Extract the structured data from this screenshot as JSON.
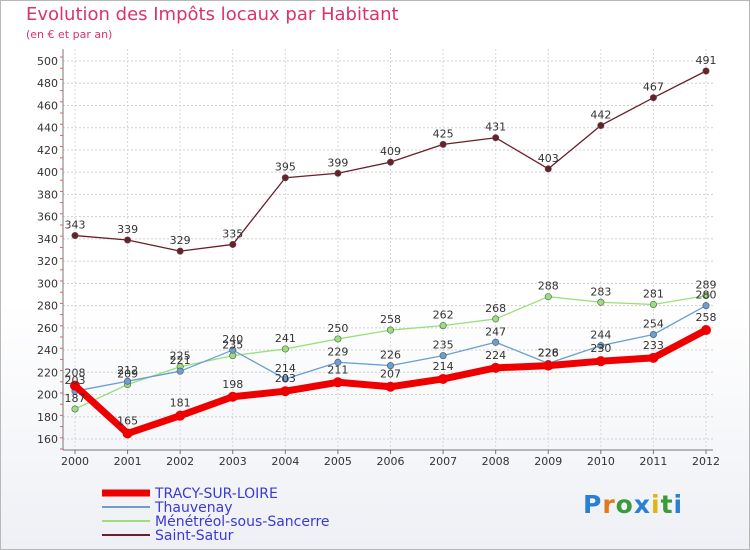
{
  "title": "Evolution des Impôts locaux par Habitant",
  "subtitle": "(en € et par an)",
  "logo": {
    "text": "Proxiti",
    "letters": [
      "P",
      "r",
      "o",
      "x",
      "i",
      "t",
      "i"
    ],
    "colors": [
      "#2a7fd4",
      "#e07b1c",
      "#3b9b3b",
      "#2a7fd4",
      "#e0b31c",
      "#3b9b3b",
      "#2a7fd4"
    ]
  },
  "chart_data": {
    "type": "line",
    "title": "Evolution des Impôts locaux par Habitant",
    "subtitle": "(en € et par an)",
    "xlabel": "",
    "ylabel": "",
    "categories": [
      "2000",
      "2001",
      "2002",
      "2003",
      "2004",
      "2005",
      "2006",
      "2007",
      "2008",
      "2009",
      "2010",
      "2011",
      "2012"
    ],
    "ylim": [
      160,
      500
    ],
    "yticks": [
      160,
      180,
      200,
      220,
      240,
      260,
      280,
      300,
      320,
      340,
      360,
      380,
      400,
      420,
      440,
      460,
      480,
      500
    ],
    "grid": true,
    "legend_position": "bottom-left",
    "series": [
      {
        "name": "Saint-Satur",
        "color": "#6b1f2a",
        "values": [
          343,
          339,
          329,
          335,
          395,
          399,
          409,
          425,
          431,
          403,
          442,
          467,
          491
        ],
        "labels": [
          "343",
          "339",
          "329",
          "335",
          "395",
          "399",
          "409",
          "425",
          "431",
          "403",
          "442",
          "467",
          "491"
        ]
      },
      {
        "name": "Ménétréol-sous-Sancerre",
        "color": "#99e07a",
        "values": [
          187,
          209,
          225,
          235,
          241,
          250,
          258,
          262,
          268,
          288,
          283,
          281,
          289
        ],
        "labels": [
          "187",
          "209",
          "225",
          "235",
          "241",
          "250",
          "258",
          "262",
          "268",
          "288",
          "283",
          "281",
          "289"
        ]
      },
      {
        "name": "Thauvenay",
        "color": "#6a9fd0",
        "values": [
          203,
          212,
          221,
          240,
          214,
          229,
          226,
          235,
          247,
          228,
          244,
          254,
          280
        ],
        "labels": [
          "203",
          "212",
          "221",
          "240",
          "214",
          "229",
          "226",
          "235",
          "247",
          "228",
          "244",
          "254",
          "280"
        ]
      },
      {
        "name": "TRACY-SUR-LOIRE",
        "color": "#ee0000",
        "values": [
          208,
          165,
          181,
          198,
          203,
          211,
          207,
          214,
          224,
          226,
          230,
          233,
          258
        ],
        "labels": [
          "208",
          "165",
          "181",
          "198",
          "203",
          "211",
          "207",
          "214",
          "224",
          "226",
          "230",
          "233",
          "258"
        ]
      }
    ],
    "legend": [
      {
        "name": "TRACY-SUR-LOIRE",
        "color": "#ee0000"
      },
      {
        "name": "Thauvenay",
        "color": "#6a9fd0"
      },
      {
        "name": "Ménétréol-sous-Sancerre",
        "color": "#99e07a"
      },
      {
        "name": "Saint-Satur",
        "color": "#6b1f2a"
      }
    ]
  }
}
